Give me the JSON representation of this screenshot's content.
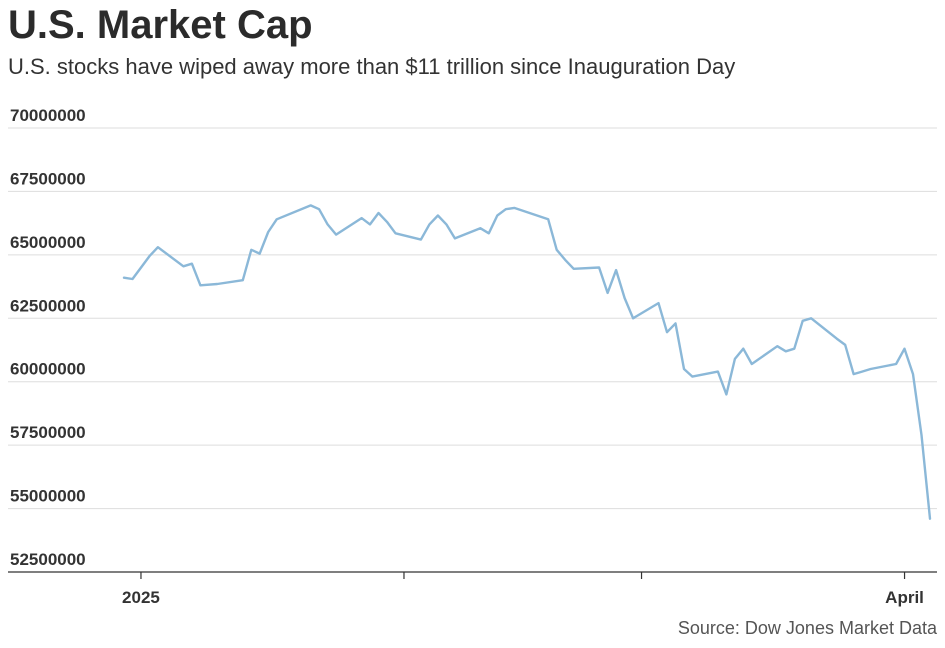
{
  "header": {
    "title": "U.S. Market Cap",
    "subtitle": "U.S. stocks have wiped away more than $11 trillion since Inauguration Day"
  },
  "footer": {
    "source": "Source: Dow Jones Market Data"
  },
  "colors": {
    "line": "#8bb8d8",
    "gridline": "#dddddd",
    "axis": "#333333",
    "text": "#2b2b2b"
  },
  "chart_data": {
    "type": "line",
    "title": "U.S. Market Cap",
    "subtitle": "U.S. stocks have wiped away more than $11 trillion since Inauguration Day",
    "xlabel": "",
    "ylabel": "",
    "ylim": [
      52500000,
      70000000
    ],
    "y_ticks": [
      70000000,
      67500000,
      65000000,
      62500000,
      60000000,
      57500000,
      55000000,
      52500000
    ],
    "y_tick_labels": [
      "70000000",
      "67500000",
      "65000000",
      "62500000",
      "60000000",
      "57500000",
      "55000000",
      "52500000"
    ],
    "x_range": [
      "2024-12-20",
      "2025-04-04"
    ],
    "x_tick_marks": [
      "2025-01-01",
      "2025-02-01",
      "2025-03-01",
      "2025-04-01"
    ],
    "x_tick_labels": [
      {
        "date": "2025-01-01",
        "label": "2025"
      },
      {
        "date": "2025-04-01",
        "label": "April"
      }
    ],
    "grid": true,
    "legend": "none",
    "series": [
      {
        "x": [
          "2024-12-30",
          "2024-12-31",
          "2025-01-02",
          "2025-01-03",
          "2025-01-06",
          "2025-01-07",
          "2025-01-08",
          "2025-01-10",
          "2025-01-13",
          "2025-01-14",
          "2025-01-15",
          "2025-01-16",
          "2025-01-17",
          "2025-01-21",
          "2025-01-22",
          "2025-01-23",
          "2025-01-24",
          "2025-01-27",
          "2025-01-28",
          "2025-01-29",
          "2025-01-30",
          "2025-01-31",
          "2025-02-03",
          "2025-02-04",
          "2025-02-05",
          "2025-02-06",
          "2025-02-07",
          "2025-02-10",
          "2025-02-11",
          "2025-02-12",
          "2025-02-13",
          "2025-02-14",
          "2025-02-18",
          "2025-02-19",
          "2025-02-20",
          "2025-02-21",
          "2025-02-24",
          "2025-02-25",
          "2025-02-26",
          "2025-02-27",
          "2025-02-28",
          "2025-03-03",
          "2025-03-04",
          "2025-03-05",
          "2025-03-06",
          "2025-03-07",
          "2025-03-10",
          "2025-03-11",
          "2025-03-12",
          "2025-03-13",
          "2025-03-14",
          "2025-03-17",
          "2025-03-18",
          "2025-03-19",
          "2025-03-20",
          "2025-03-21",
          "2025-03-24",
          "2025-03-25",
          "2025-03-26",
          "2025-03-27",
          "2025-03-28",
          "2025-03-31",
          "2025-04-01",
          "2025-04-02",
          "2025-04-03",
          "2025-04-04"
        ],
        "values": [
          64100000,
          64050000,
          64950000,
          65300000,
          64550000,
          64650000,
          63800000,
          63850000,
          64000000,
          65200000,
          65050000,
          65900000,
          66400000,
          66950000,
          66800000,
          66200000,
          65800000,
          66450000,
          66200000,
          66650000,
          66300000,
          65850000,
          65600000,
          66200000,
          66550000,
          66200000,
          65650000,
          66050000,
          65850000,
          66550000,
          66800000,
          66850000,
          66400000,
          65200000,
          64800000,
          64450000,
          64500000,
          63500000,
          64400000,
          63300000,
          62500000,
          63100000,
          61950000,
          62300000,
          60500000,
          60200000,
          60400000,
          59500000,
          60900000,
          61300000,
          60700000,
          61400000,
          61200000,
          61300000,
          62400000,
          62500000,
          61700000,
          61450000,
          60300000,
          60400000,
          60500000,
          60700000,
          61300000,
          60300000,
          57900000,
          54600000
        ]
      }
    ]
  }
}
